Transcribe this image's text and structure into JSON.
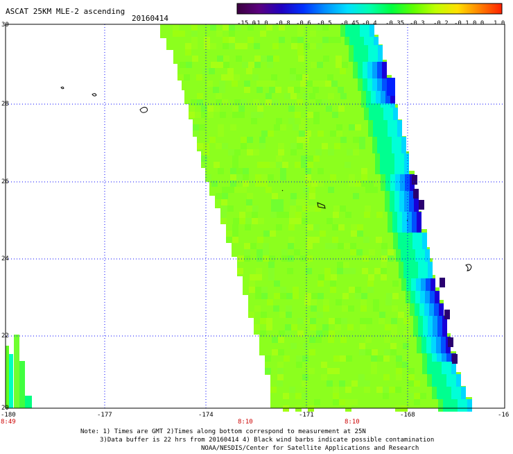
{
  "header": {
    "title": "ASCAT 25KM MLE-2 ascending",
    "date": "20160414"
  },
  "colorbar": {
    "labels": [
      "-15.0",
      "-1.0",
      "-0.8",
      "-0.6",
      "-0.5",
      "-0.45",
      "-0.4",
      "-0.35",
      "-0.3",
      "-0.2",
      "-0.1",
      "0.0",
      "1.0"
    ],
    "colors": [
      "#3b003f",
      "#5a007f",
      "#2000c0",
      "#0030ff",
      "#0090ff",
      "#00e0ff",
      "#00ffb0",
      "#00ff40",
      "#60ff00",
      "#c0ff00",
      "#ffe000",
      "#ff8000",
      "#ff2000"
    ]
  },
  "map": {
    "lon_ticks": [
      "-180",
      "-177",
      "-174",
      "-171",
      "-168",
      "-16"
    ],
    "lat_ticks": [
      "30",
      "28",
      "26",
      "24",
      "22",
      "20"
    ],
    "time_labels": [
      "8:49",
      "8:10",
      "8:10"
    ],
    "grid_color": "#0000ff",
    "time_label_color": "#cc0000"
  },
  "footer": {
    "line1": "Note: 1) Times are GMT 2)Times along bottom correspond to measurement at 25N",
    "line2": "3)Data buffer is 22 hrs from 20160414 4) Black wind barbs indicate possible contamination",
    "line3": "NOAA/NESDIS/Center for Satellite Applications and Research"
  }
}
